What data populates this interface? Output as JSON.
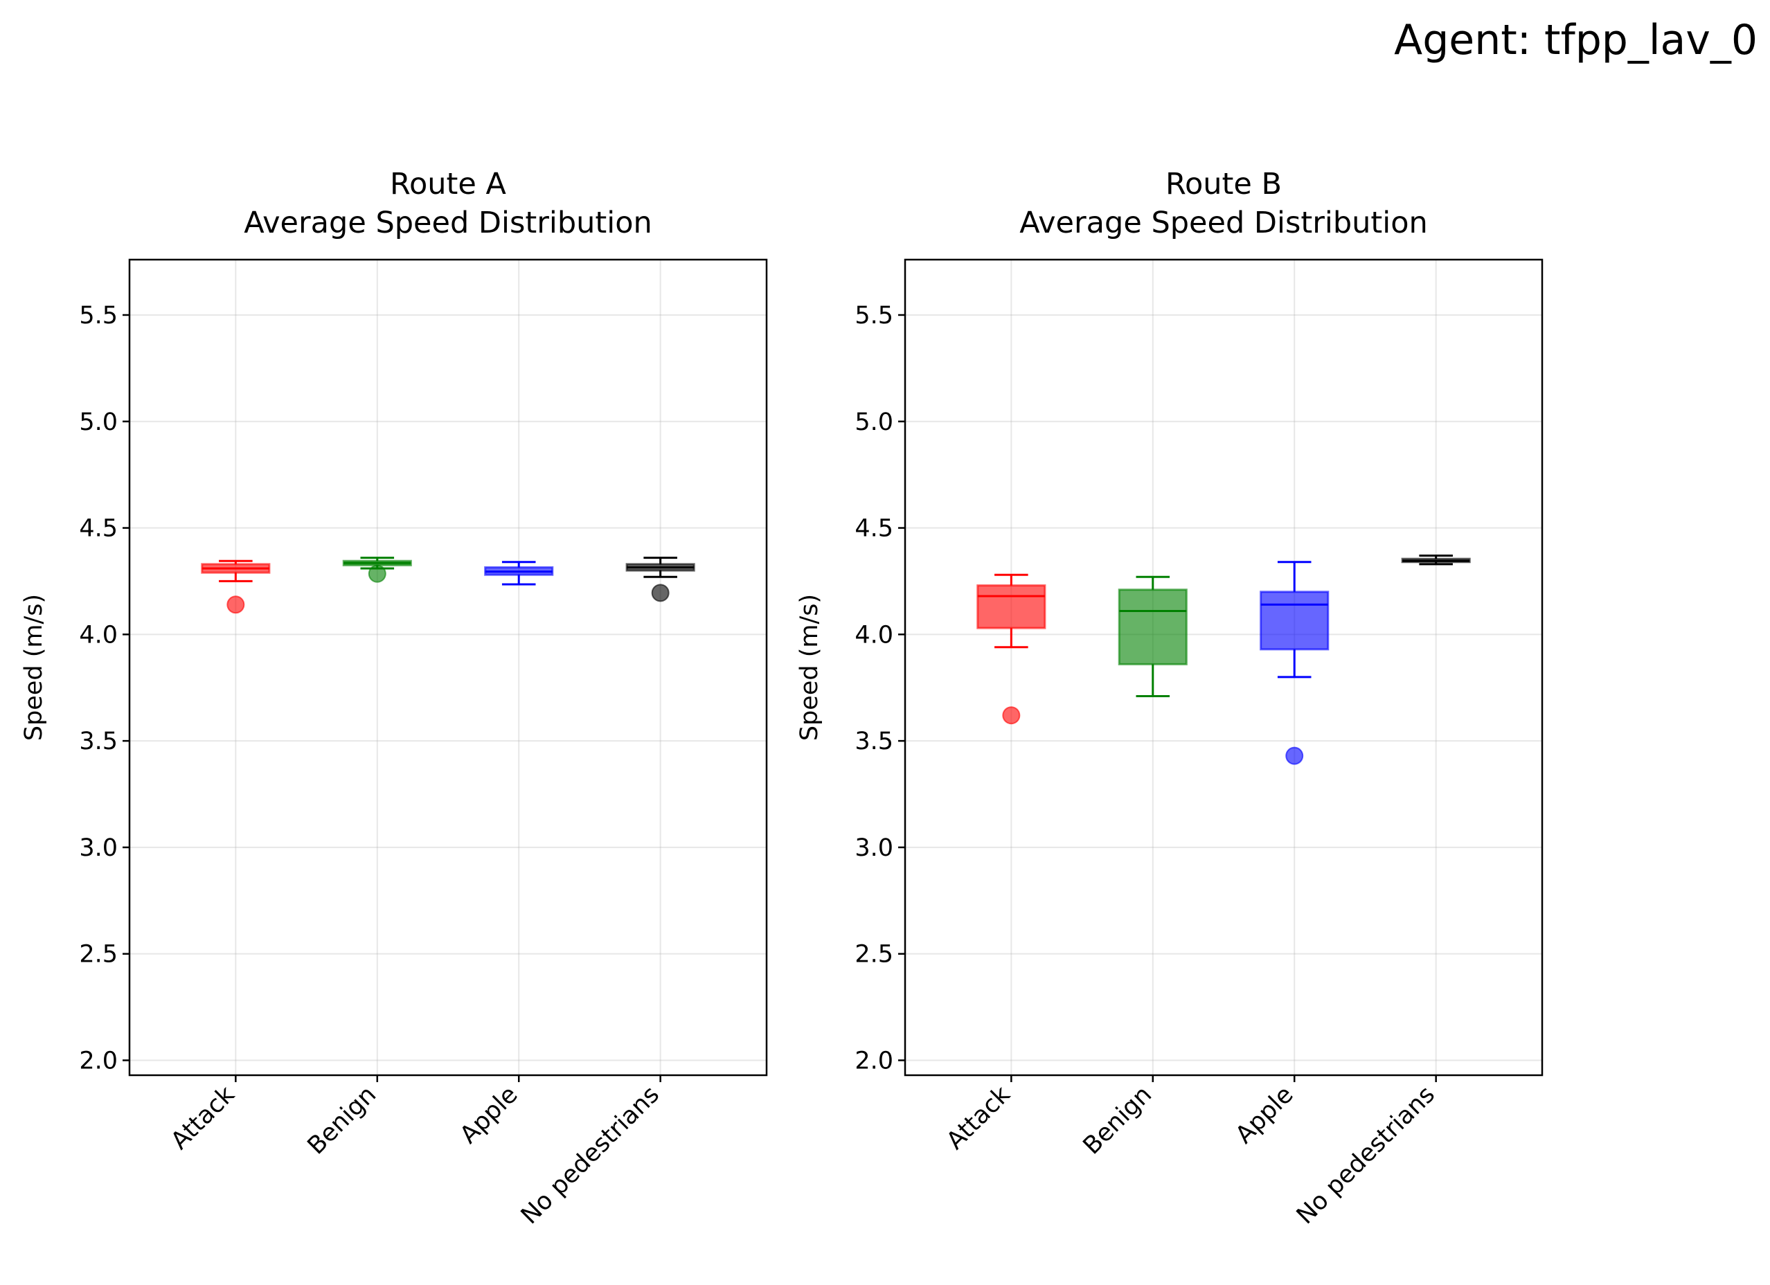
{
  "suptitle": "Agent: tfpp_lav_0",
  "chart_data": [
    {
      "type": "box",
      "title": "Route A\nAverage Speed Distribution",
      "title_lines": [
        "Route A",
        "Average Speed Distribution"
      ],
      "xlabel": "",
      "ylabel": "Speed (m/s)",
      "ylim": [
        1.93,
        5.76
      ],
      "yticks": [
        2.0,
        2.5,
        3.0,
        3.5,
        4.0,
        4.5,
        5.0,
        5.5
      ],
      "grid": true,
      "categories": [
        "Attack",
        "Benign",
        "Apple",
        "No pedestrians"
      ],
      "colors": [
        "#ff0000",
        "#008000",
        "#0000ff",
        "#000000"
      ],
      "boxes": [
        {
          "whisker_low": 4.25,
          "q1": 4.29,
          "median": 4.31,
          "q3": 4.33,
          "whisker_high": 4.345,
          "outliers": [
            4.14
          ]
        },
        {
          "whisker_low": 4.31,
          "q1": 4.325,
          "median": 4.335,
          "q3": 4.345,
          "whisker_high": 4.36,
          "outliers": [
            4.285
          ]
        },
        {
          "whisker_low": 4.235,
          "q1": 4.28,
          "median": 4.295,
          "q3": 4.315,
          "whisker_high": 4.34,
          "outliers": []
        },
        {
          "whisker_low": 4.27,
          "q1": 4.3,
          "median": 4.315,
          "q3": 4.33,
          "whisker_high": 4.36,
          "outliers": [
            4.195
          ]
        }
      ]
    },
    {
      "type": "box",
      "title": "Route B\nAverage Speed Distribution",
      "title_lines": [
        "Route B",
        "Average Speed Distribution"
      ],
      "xlabel": "",
      "ylabel": "Speed (m/s)",
      "ylim": [
        1.93,
        5.76
      ],
      "yticks": [
        2.0,
        2.5,
        3.0,
        3.5,
        4.0,
        4.5,
        5.0,
        5.5
      ],
      "grid": true,
      "categories": [
        "Attack",
        "Benign",
        "Apple",
        "No pedestrians"
      ],
      "colors": [
        "#ff0000",
        "#008000",
        "#0000ff",
        "#000000"
      ],
      "boxes": [
        {
          "whisker_low": 3.94,
          "q1": 4.03,
          "median": 4.18,
          "q3": 4.23,
          "whisker_high": 4.28,
          "outliers": [
            3.62
          ]
        },
        {
          "whisker_low": 3.71,
          "q1": 3.86,
          "median": 4.11,
          "q3": 4.21,
          "whisker_high": 4.27,
          "outliers": []
        },
        {
          "whisker_low": 3.8,
          "q1": 3.93,
          "median": 4.14,
          "q3": 4.2,
          "whisker_high": 4.34,
          "outliers": [
            3.43
          ]
        },
        {
          "whisker_low": 4.33,
          "q1": 4.34,
          "median": 4.345,
          "q3": 4.355,
          "whisker_high": 4.37,
          "outliers": []
        }
      ]
    }
  ]
}
